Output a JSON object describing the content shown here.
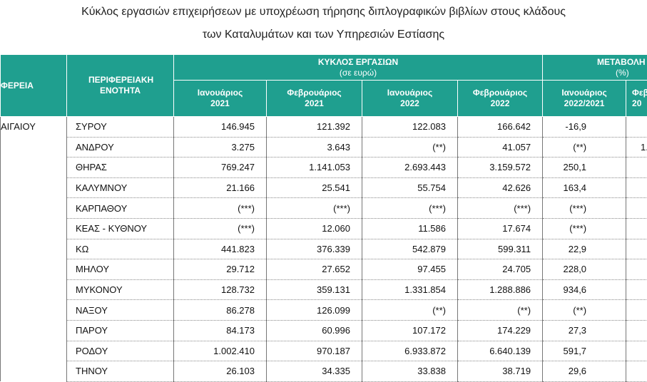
{
  "header": {
    "title_lines": [
      "Κύκλος εργασιών επιχειρήσεων με υποχρέωση τήρησης διπλογραφικών βιβλίων στους κλάδους",
      "των Καταλυμάτων  και των Υπηρεσιών Εστίασης"
    ]
  },
  "table": {
    "region_header": "ΦΕΡΕΙΑ",
    "unit_header": "ΠΕΡΙΦΕΡΕΙΑΚΗ ΕΝΟΤΗΤΑ",
    "turnover_group": [
      "ΚΥΚΛΟΣ ΕΡΓΑΣΙΩΝ",
      "(σε ευρώ)"
    ],
    "change_group": [
      "ΜΕΤΑΒΟΛΗ",
      "(%)"
    ],
    "columns": [
      [
        "Ιανουάριος",
        "2021"
      ],
      [
        "Φεβρουάριος",
        "2021"
      ],
      [
        "Ιανουάριος",
        "2022"
      ],
      [
        "Φεβρουάριος",
        "2022"
      ],
      [
        "Ιανουάριος",
        "2022/2021"
      ],
      [
        "Φεβ",
        "20"
      ]
    ],
    "region": "ΑΙΓΑΙΟΥ",
    "rows": [
      {
        "unit": "ΣΥΡΟΥ",
        "values": [
          "146.945",
          "121.392",
          "122.083",
          "166.642",
          "-16,9"
        ]
      },
      {
        "unit": "ΑΝΔΡΟΥ",
        "values": [
          "3.275",
          "3.643",
          "(**)",
          "41.057",
          "(**)"
        ],
        "cut": "1."
      },
      {
        "unit": "ΘΗΡΑΣ",
        "values": [
          "769.247",
          "1.141.053",
          "2.693.443",
          "3.159.572",
          "250,1"
        ]
      },
      {
        "unit": "ΚΑΛΥΜΝΟΥ",
        "values": [
          "21.166",
          "25.541",
          "55.754",
          "42.626",
          "163,4"
        ]
      },
      {
        "unit": "ΚΑΡΠΑΘΟΥ",
        "values": [
          "(***)",
          "(***)",
          "(***)",
          "(***)",
          "(***)"
        ]
      },
      {
        "unit": "ΚΕΑΣ - ΚΥΘΝΟΥ",
        "values": [
          "(***)",
          "12.060",
          "11.586",
          "17.674",
          "(***)"
        ]
      },
      {
        "unit": "ΚΩ",
        "values": [
          "441.823",
          "376.339",
          "542.879",
          "599.311",
          "22,9"
        ]
      },
      {
        "unit": "ΜΗΛΟΥ",
        "values": [
          "29.712",
          "27.652",
          "97.455",
          "24.705",
          "228,0"
        ]
      },
      {
        "unit": "ΜΥΚΟΝΟΥ",
        "values": [
          "128.732",
          "359.131",
          "1.331.854",
          "1.288.886",
          "934,6"
        ]
      },
      {
        "unit": "ΝΑΞΟΥ",
        "values": [
          "86.278",
          "126.099",
          "(**)",
          "(**)",
          "(**)"
        ]
      },
      {
        "unit": "ΠΑΡΟΥ",
        "values": [
          "84.173",
          "60.996",
          "107.172",
          "174.229",
          "27,3"
        ]
      },
      {
        "unit": "ΡΟΔΟΥ",
        "values": [
          "1.002.410",
          "970.187",
          "6.933.872",
          "6.640.139",
          "591,7"
        ]
      },
      {
        "unit": "ΤΗΝΟΥ",
        "values": [
          "26.103",
          "34.335",
          "33.838",
          "38.719",
          "29,6"
        ]
      }
    ]
  }
}
